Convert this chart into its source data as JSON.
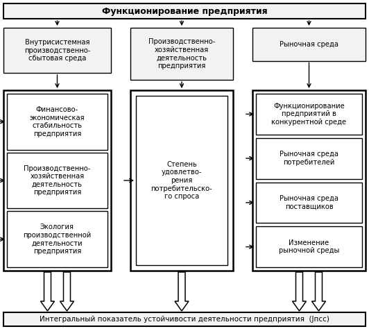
{
  "title_top": "Функционирование предприятия",
  "title_bottom": "Интегральный показатель устойчивости деятельности предприятия  (Jпсс)",
  "col1_header": "Внутрисистемная\nпроизводственно-\nсбытовая среда",
  "col2_header": "Производственно-\nхозяйственная\nдеятельность\nпредприятия",
  "col3_header": "Рыночная среда",
  "col1_items": [
    "Финансово-\nэкономическая\nстабильность\nпредприятия",
    "Производственно-\nхозяйственная\nдеятельность\nпредприятия",
    "Экология\nпроизводственной\nдеятельности\nпредприятия"
  ],
  "col2_items": [
    "Степень\nудовлетво-\nрения\nпотребительско-\nго спроса"
  ],
  "col3_items": [
    "Функционирование\nпредприятий в\nконкурентной среде",
    "Рыночная среда\nпотребителей",
    "Рыночная среда\nпоставщиков",
    "Изменение\nрыночной среды"
  ],
  "bg_color": "#ffffff",
  "font_size": 7.2,
  "title_font_size": 9.0
}
